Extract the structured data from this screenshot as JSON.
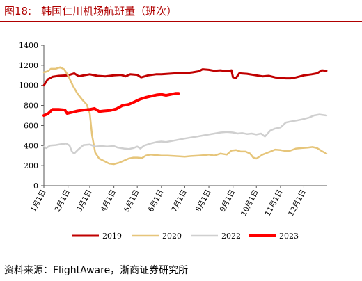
{
  "header": {
    "figure_no": "图18:",
    "title": "韩国仁川机场航班量（班次）"
  },
  "footer": {
    "source": "资料来源：FlightAware，浙商证券研究所"
  },
  "colors": {
    "accent": "#b00000",
    "s2019": "#c00000",
    "s2020": "#e6c57a",
    "s2022": "#cfcfcf",
    "s2023": "#ff0000"
  },
  "chart_data": {
    "type": "line",
    "title": "韩国仁川机场航班量（班次）",
    "xlabel": "",
    "ylabel": "",
    "ylim": [
      0,
      1400
    ],
    "yticks": [
      0,
      200,
      400,
      600,
      800,
      1000,
      1200,
      1400
    ],
    "xlim": [
      1,
      365
    ],
    "xticks": [
      {
        "label": "1月1日",
        "day": 1
      },
      {
        "label": "2月1日",
        "day": 32
      },
      {
        "label": "3月1日",
        "day": 60
      },
      {
        "label": "4月1日",
        "day": 91
      },
      {
        "label": "5月1日",
        "day": 121
      },
      {
        "label": "6月1日",
        "day": 152
      },
      {
        "label": "7月1日",
        "day": 182
      },
      {
        "label": "8月1日",
        "day": 213
      },
      {
        "label": "9月1日",
        "day": 244
      },
      {
        "label": "10月1日",
        "day": 274
      },
      {
        "label": "11月1日",
        "day": 305
      },
      {
        "label": "12月1日",
        "day": 335
      }
    ],
    "grid": false,
    "legend_position": "bottom",
    "series": [
      {
        "name": "2019",
        "color_key": "s2019",
        "width": 3,
        "points": [
          [
            1,
            1000
          ],
          [
            6,
            1060
          ],
          [
            12,
            1085
          ],
          [
            20,
            1095
          ],
          [
            32,
            1100
          ],
          [
            40,
            1120
          ],
          [
            46,
            1090
          ],
          [
            52,
            1100
          ],
          [
            60,
            1110
          ],
          [
            70,
            1095
          ],
          [
            80,
            1090
          ],
          [
            91,
            1100
          ],
          [
            100,
            1105
          ],
          [
            106,
            1090
          ],
          [
            112,
            1110
          ],
          [
            121,
            1105
          ],
          [
            126,
            1080
          ],
          [
            135,
            1100
          ],
          [
            145,
            1110
          ],
          [
            152,
            1110
          ],
          [
            160,
            1115
          ],
          [
            170,
            1120
          ],
          [
            182,
            1120
          ],
          [
            192,
            1130
          ],
          [
            200,
            1140
          ],
          [
            205,
            1160
          ],
          [
            213,
            1155
          ],
          [
            220,
            1145
          ],
          [
            228,
            1150
          ],
          [
            236,
            1140
          ],
          [
            242,
            1150
          ],
          [
            244,
            1080
          ],
          [
            248,
            1075
          ],
          [
            252,
            1120
          ],
          [
            262,
            1115
          ],
          [
            274,
            1100
          ],
          [
            282,
            1090
          ],
          [
            290,
            1095
          ],
          [
            298,
            1080
          ],
          [
            305,
            1075
          ],
          [
            312,
            1070
          ],
          [
            318,
            1070
          ],
          [
            325,
            1080
          ],
          [
            335,
            1100
          ],
          [
            345,
            1110
          ],
          [
            352,
            1120
          ],
          [
            358,
            1150
          ],
          [
            364,
            1145
          ]
        ]
      },
      {
        "name": "2020",
        "color_key": "s2020",
        "width": 2.5,
        "points": [
          [
            1,
            1130
          ],
          [
            6,
            1140
          ],
          [
            10,
            1165
          ],
          [
            16,
            1165
          ],
          [
            22,
            1180
          ],
          [
            27,
            1160
          ],
          [
            32,
            1100
          ],
          [
            38,
            1000
          ],
          [
            44,
            920
          ],
          [
            50,
            860
          ],
          [
            56,
            810
          ],
          [
            60,
            720
          ],
          [
            63,
            500
          ],
          [
            67,
            330
          ],
          [
            72,
            270
          ],
          [
            80,
            240
          ],
          [
            85,
            220
          ],
          [
            91,
            215
          ],
          [
            98,
            230
          ],
          [
            104,
            250
          ],
          [
            110,
            270
          ],
          [
            116,
            280
          ],
          [
            121,
            280
          ],
          [
            127,
            275
          ],
          [
            132,
            300
          ],
          [
            138,
            310
          ],
          [
            145,
            305
          ],
          [
            152,
            300
          ],
          [
            160,
            300
          ],
          [
            170,
            295
          ],
          [
            182,
            290
          ],
          [
            190,
            295
          ],
          [
            200,
            300
          ],
          [
            208,
            305
          ],
          [
            213,
            310
          ],
          [
            220,
            300
          ],
          [
            228,
            320
          ],
          [
            236,
            310
          ],
          [
            242,
            350
          ],
          [
            248,
            355
          ],
          [
            254,
            340
          ],
          [
            260,
            340
          ],
          [
            266,
            320
          ],
          [
            270,
            280
          ],
          [
            274,
            270
          ],
          [
            282,
            310
          ],
          [
            292,
            340
          ],
          [
            298,
            360
          ],
          [
            305,
            355
          ],
          [
            312,
            345
          ],
          [
            318,
            350
          ],
          [
            325,
            370
          ],
          [
            332,
            375
          ],
          [
            340,
            380
          ],
          [
            346,
            385
          ],
          [
            352,
            375
          ],
          [
            358,
            345
          ],
          [
            364,
            320
          ]
        ]
      },
      {
        "name": "2022",
        "color_key": "s2022",
        "width": 2.5,
        "points": [
          [
            1,
            390
          ],
          [
            4,
            375
          ],
          [
            9,
            400
          ],
          [
            16,
            405
          ],
          [
            24,
            415
          ],
          [
            30,
            420
          ],
          [
            34,
            400
          ],
          [
            37,
            340
          ],
          [
            40,
            320
          ],
          [
            45,
            360
          ],
          [
            52,
            405
          ],
          [
            60,
            410
          ],
          [
            67,
            390
          ],
          [
            75,
            395
          ],
          [
            82,
            390
          ],
          [
            91,
            395
          ],
          [
            96,
            380
          ],
          [
            104,
            370
          ],
          [
            110,
            365
          ],
          [
            116,
            375
          ],
          [
            121,
            390
          ],
          [
            125,
            370
          ],
          [
            130,
            400
          ],
          [
            138,
            420
          ],
          [
            146,
            435
          ],
          [
            152,
            440
          ],
          [
            158,
            435
          ],
          [
            165,
            445
          ],
          [
            172,
            455
          ],
          [
            182,
            470
          ],
          [
            190,
            480
          ],
          [
            198,
            490
          ],
          [
            205,
            500
          ],
          [
            213,
            510
          ],
          [
            220,
            520
          ],
          [
            228,
            530
          ],
          [
            236,
            535
          ],
          [
            244,
            530
          ],
          [
            250,
            520
          ],
          [
            256,
            525
          ],
          [
            262,
            515
          ],
          [
            268,
            520
          ],
          [
            274,
            510
          ],
          [
            280,
            520
          ],
          [
            285,
            490
          ],
          [
            292,
            550
          ],
          [
            298,
            570
          ],
          [
            305,
            580
          ],
          [
            312,
            630
          ],
          [
            318,
            640
          ],
          [
            326,
            650
          ],
          [
            335,
            665
          ],
          [
            342,
            680
          ],
          [
            348,
            700
          ],
          [
            355,
            710
          ],
          [
            364,
            700
          ]
        ]
      },
      {
        "name": "2023",
        "color_key": "s2023",
        "width": 4,
        "points": [
          [
            1,
            700
          ],
          [
            6,
            715
          ],
          [
            12,
            760
          ],
          [
            20,
            760
          ],
          [
            28,
            755
          ],
          [
            31,
            720
          ],
          [
            36,
            730
          ],
          [
            44,
            745
          ],
          [
            52,
            755
          ],
          [
            60,
            760
          ],
          [
            66,
            770
          ],
          [
            72,
            740
          ],
          [
            78,
            745
          ],
          [
            86,
            750
          ],
          [
            94,
            765
          ],
          [
            102,
            800
          ],
          [
            110,
            810
          ],
          [
            116,
            830
          ],
          [
            124,
            860
          ],
          [
            132,
            880
          ],
          [
            140,
            895
          ],
          [
            146,
            905
          ],
          [
            152,
            910
          ],
          [
            158,
            900
          ],
          [
            164,
            910
          ],
          [
            170,
            920
          ],
          [
            174,
            920
          ]
        ]
      }
    ]
  }
}
